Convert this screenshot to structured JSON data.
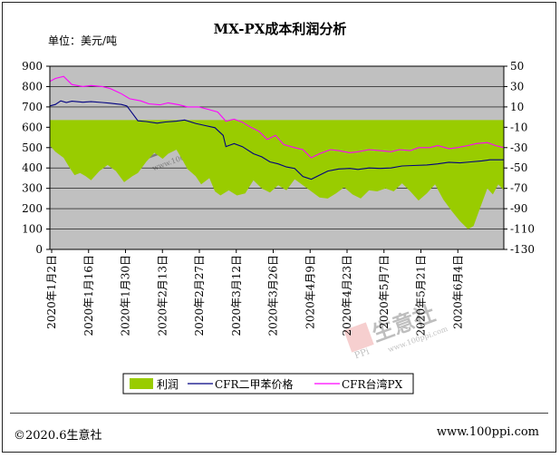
{
  "chart_data": {
    "type": "line",
    "title": "MX-PX成本利润分析",
    "unit_label": "单位：美元/吨",
    "left_axis": {
      "min": 0,
      "max": 900,
      "step": 100,
      "ticks": [
        "0",
        "100",
        "200",
        "300",
        "400",
        "500",
        "600",
        "700",
        "800",
        "900"
      ]
    },
    "right_axis": {
      "min": -130,
      "max": 50,
      "step": 20,
      "ticks": [
        "-130",
        "-110",
        "-90",
        "-70",
        "-50",
        "-30",
        "-10",
        "10",
        "30",
        "50"
      ]
    },
    "x_tick_labels": [
      "2020年1月2日",
      "2020年1月16日",
      "2020年1月30日",
      "2020年2月13日",
      "2020年2月27日",
      "2020年3月12日",
      "2020年3月26日",
      "2020年4月9日",
      "2020年4月23日",
      "2020年5月7日",
      "2020年5月21日",
      "2020年6月4日"
    ],
    "x_range": [
      "2020-01-02",
      "2020-06-15"
    ],
    "grid": "horizontal",
    "legend_position": "bottom",
    "series": [
      {
        "name": "利润",
        "kind": "area",
        "axis": "right",
        "color": "#99cc00",
        "points": [
          [
            "2020-01-02",
            -28
          ],
          [
            "2020-01-04",
            -34
          ],
          [
            "2020-01-07",
            -40
          ],
          [
            "2020-01-09",
            -49
          ],
          [
            "2020-01-11",
            -57
          ],
          [
            "2020-01-13",
            -55
          ],
          [
            "2020-01-15",
            -58
          ],
          [
            "2020-01-17",
            -62
          ],
          [
            "2020-01-20",
            -53
          ],
          [
            "2020-01-23",
            -47
          ],
          [
            "2020-01-26",
            -53
          ],
          [
            "2020-01-29",
            -64
          ],
          [
            "2020-02-01",
            -58
          ],
          [
            "2020-02-03",
            -55
          ],
          [
            "2020-02-06",
            -44
          ],
          [
            "2020-02-09",
            -35
          ],
          [
            "2020-02-12",
            -41
          ],
          [
            "2020-02-14",
            -36
          ],
          [
            "2020-02-17",
            -32
          ],
          [
            "2020-02-19",
            -41
          ],
          [
            "2020-02-21",
            -51
          ],
          [
            "2020-02-24",
            -58
          ],
          [
            "2020-02-26",
            -66
          ],
          [
            "2020-02-29",
            -60
          ],
          [
            "2020-03-02",
            -73
          ],
          [
            "2020-03-04",
            -77
          ],
          [
            "2020-03-07",
            -72
          ],
          [
            "2020-03-10",
            -77
          ],
          [
            "2020-03-13",
            -75
          ],
          [
            "2020-03-16",
            -62
          ],
          [
            "2020-03-19",
            -70
          ],
          [
            "2020-03-22",
            -74
          ],
          [
            "2020-03-25",
            -67
          ],
          [
            "2020-03-28",
            -72
          ],
          [
            "2020-03-31",
            -61
          ],
          [
            "2020-04-03",
            -67
          ],
          [
            "2020-04-06",
            -73
          ],
          [
            "2020-04-09",
            -79
          ],
          [
            "2020-04-12",
            -80
          ],
          [
            "2020-04-15",
            -75
          ],
          [
            "2020-04-18",
            -69
          ],
          [
            "2020-04-21",
            -76
          ],
          [
            "2020-04-24",
            -80
          ],
          [
            "2020-04-27",
            -72
          ],
          [
            "2020-04-30",
            -73
          ],
          [
            "2020-05-03",
            -70
          ],
          [
            "2020-05-06",
            -73
          ],
          [
            "2020-05-09",
            -65
          ],
          [
            "2020-05-12",
            -73
          ],
          [
            "2020-05-15",
            -82
          ],
          [
            "2020-05-18",
            -75
          ],
          [
            "2020-05-21",
            -66
          ],
          [
            "2020-05-24",
            -81
          ],
          [
            "2020-05-27",
            -92
          ],
          [
            "2020-05-30",
            -102
          ],
          [
            "2020-06-02",
            -110
          ],
          [
            "2020-06-04",
            -107
          ],
          [
            "2020-06-06",
            -92
          ],
          [
            "2020-06-09",
            -70
          ],
          [
            "2020-06-11",
            -76
          ],
          [
            "2020-06-13",
            -66
          ],
          [
            "2020-06-15",
            -72
          ]
        ]
      },
      {
        "name": "CFR二甲苯价格",
        "kind": "line",
        "axis": "left",
        "color": "#000080",
        "points": [
          [
            "2020-01-02",
            705
          ],
          [
            "2020-01-04",
            712
          ],
          [
            "2020-01-06",
            730
          ],
          [
            "2020-01-08",
            722
          ],
          [
            "2020-01-10",
            728
          ],
          [
            "2020-01-14",
            723
          ],
          [
            "2020-01-17",
            726
          ],
          [
            "2020-01-21",
            722
          ],
          [
            "2020-01-24",
            718
          ],
          [
            "2020-01-28",
            712
          ],
          [
            "2020-01-30",
            705
          ],
          [
            "2020-02-03",
            632
          ],
          [
            "2020-02-06",
            628
          ],
          [
            "2020-02-10",
            620
          ],
          [
            "2020-02-13",
            626
          ],
          [
            "2020-02-17",
            630
          ],
          [
            "2020-02-20",
            636
          ],
          [
            "2020-02-24",
            619
          ],
          [
            "2020-02-27",
            610
          ],
          [
            "2020-03-02",
            598
          ],
          [
            "2020-03-05",
            560
          ],
          [
            "2020-03-06",
            505
          ],
          [
            "2020-03-09",
            520
          ],
          [
            "2020-03-12",
            505
          ],
          [
            "2020-03-16",
            470
          ],
          [
            "2020-03-19",
            455
          ],
          [
            "2020-03-22",
            430
          ],
          [
            "2020-03-25",
            420
          ],
          [
            "2020-03-28",
            405
          ],
          [
            "2020-03-31",
            398
          ],
          [
            "2020-04-03",
            358
          ],
          [
            "2020-04-06",
            345
          ],
          [
            "2020-04-09",
            365
          ],
          [
            "2020-04-12",
            385
          ],
          [
            "2020-04-16",
            395
          ],
          [
            "2020-04-20",
            398
          ],
          [
            "2020-04-23",
            393
          ],
          [
            "2020-04-27",
            400
          ],
          [
            "2020-05-01",
            398
          ],
          [
            "2020-05-05",
            400
          ],
          [
            "2020-05-09",
            410
          ],
          [
            "2020-05-13",
            412
          ],
          [
            "2020-05-18",
            415
          ],
          [
            "2020-05-22",
            420
          ],
          [
            "2020-05-26",
            428
          ],
          [
            "2020-05-30",
            425
          ],
          [
            "2020-06-03",
            430
          ],
          [
            "2020-06-07",
            435
          ],
          [
            "2020-06-10",
            440
          ],
          [
            "2020-06-13",
            440
          ],
          [
            "2020-06-15",
            440
          ]
        ]
      },
      {
        "name": "CFR台湾PX",
        "kind": "line",
        "axis": "right",
        "color": "#ff00ff",
        "points": [
          [
            "2020-01-02",
            35
          ],
          [
            "2020-01-04",
            38
          ],
          [
            "2020-01-07",
            40
          ],
          [
            "2020-01-10",
            32
          ],
          [
            "2020-01-14",
            30
          ],
          [
            "2020-01-17",
            31
          ],
          [
            "2020-01-21",
            30
          ],
          [
            "2020-01-24",
            28
          ],
          [
            "2020-01-28",
            23
          ],
          [
            "2020-01-31",
            18
          ],
          [
            "2020-02-04",
            16
          ],
          [
            "2020-02-07",
            13
          ],
          [
            "2020-02-11",
            12
          ],
          [
            "2020-02-14",
            14
          ],
          [
            "2020-02-18",
            12
          ],
          [
            "2020-02-21",
            10
          ],
          [
            "2020-02-25",
            10
          ],
          [
            "2020-02-28",
            8
          ],
          [
            "2020-03-03",
            5
          ],
          [
            "2020-03-06",
            -4
          ],
          [
            "2020-03-09",
            -2
          ],
          [
            "2020-03-12",
            -5
          ],
          [
            "2020-03-15",
            -10
          ],
          [
            "2020-03-18",
            -14
          ],
          [
            "2020-03-21",
            -22
          ],
          [
            "2020-03-24",
            -18
          ],
          [
            "2020-03-27",
            -27
          ],
          [
            "2020-03-31",
            -30
          ],
          [
            "2020-04-03",
            -32
          ],
          [
            "2020-04-06",
            -40
          ],
          [
            "2020-04-09",
            -36
          ],
          [
            "2020-04-13",
            -32
          ],
          [
            "2020-04-16",
            -33
          ],
          [
            "2020-04-20",
            -35
          ],
          [
            "2020-04-23",
            -34
          ],
          [
            "2020-04-27",
            -32
          ],
          [
            "2020-05-01",
            -33
          ],
          [
            "2020-05-05",
            -34
          ],
          [
            "2020-05-08",
            -32
          ],
          [
            "2020-05-12",
            -33
          ],
          [
            "2020-05-15",
            -30
          ],
          [
            "2020-05-19",
            -30
          ],
          [
            "2020-05-22",
            -28
          ],
          [
            "2020-05-26",
            -31
          ],
          [
            "2020-05-29",
            -30
          ],
          [
            "2020-06-02",
            -28
          ],
          [
            "2020-06-05",
            -26
          ],
          [
            "2020-06-09",
            -25
          ],
          [
            "2020-06-12",
            -28
          ],
          [
            "2020-06-15",
            -30
          ]
        ]
      }
    ]
  },
  "legend": {
    "profit": "利润",
    "mx_price": "CFR二甲苯价格",
    "px_price": "CFR台湾PX"
  },
  "footer": {
    "copyright": "©2020.6生意社",
    "website": "www.100ppi.com"
  },
  "watermark": {
    "brand": "生意社",
    "url": "www.100ppi.com",
    "logo_letters": "PPi"
  },
  "colors": {
    "plot_background": "#c0c0c0",
    "grid": "#000000",
    "profit_fill": "#99cc00",
    "mx_line": "#000080",
    "px_line": "#ff00ff"
  }
}
